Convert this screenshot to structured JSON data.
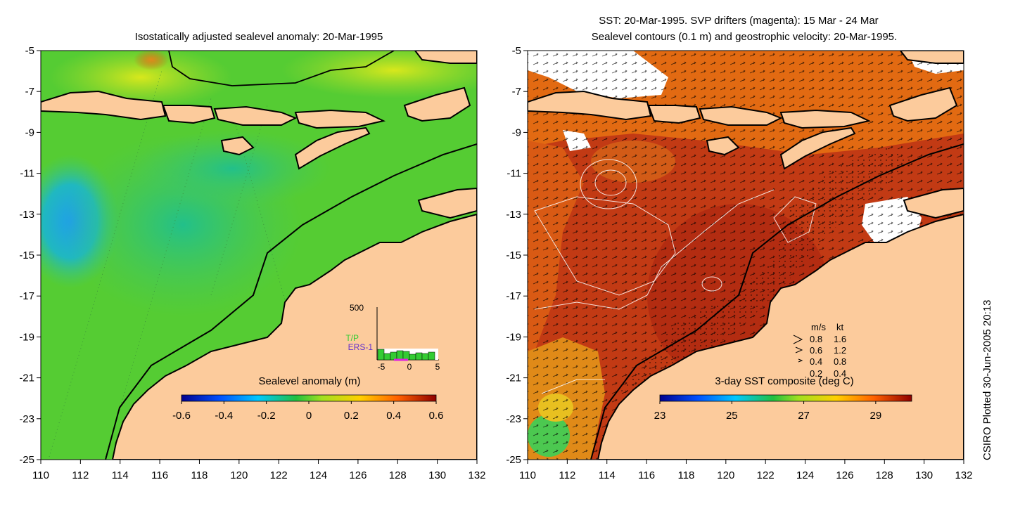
{
  "left_panel": {
    "title": "Isostatically adjusted sealevel anomaly: 20-Mar-1995",
    "y_ticks": [
      "-5",
      "-7",
      "-9",
      "-11",
      "-13",
      "-15",
      "-17",
      "-19",
      "-21",
      "-23",
      "-25"
    ],
    "x_ticks": [
      "110",
      "112",
      "114",
      "116",
      "118",
      "120",
      "122",
      "124",
      "126",
      "128",
      "130",
      "132"
    ],
    "colorbar": {
      "label": "Sealevel anomaly (m)",
      "ticks": [
        "-0.6",
        "-0.4",
        "-0.2",
        "0",
        "0.2",
        "0.4",
        "0.6"
      ],
      "range": [
        -0.6,
        0.6
      ]
    },
    "inset_histogram": {
      "y_max_label": "500",
      "x_ticks": [
        "-5",
        "0",
        "5"
      ],
      "legend": [
        {
          "label": "T/P",
          "color": "#33cc33"
        },
        {
          "label": "ERS-1",
          "color": "#6633cc"
        }
      ]
    }
  },
  "right_panel": {
    "title_line1": "SST: 20-Mar-1995. SVP drifters (magenta): 15 Mar - 24 Mar",
    "title_line2": "Sealevel contours (0.1 m) and geostrophic velocity: 20-Mar-1995.",
    "y_ticks": [
      "-5",
      "-7",
      "-9",
      "-11",
      "-13",
      "-15",
      "-17",
      "-19",
      "-21",
      "-23",
      "-25"
    ],
    "x_ticks": [
      "110",
      "112",
      "114",
      "116",
      "118",
      "120",
      "122",
      "124",
      "126",
      "128",
      "130",
      "132"
    ],
    "colorbar": {
      "label": "3-day SST composite (deg C)",
      "ticks": [
        "23",
        "25",
        "27",
        "29"
      ],
      "range": [
        23,
        30
      ]
    },
    "velocity_legend": {
      "headers": [
        "m/s",
        "kt"
      ],
      "rows": [
        {
          "ms": "0.8",
          "kt": "1.6"
        },
        {
          "ms": "0.6",
          "kt": "1.2"
        },
        {
          "ms": "0.4",
          "kt": "0.8"
        },
        {
          "ms": "0.2",
          "kt": "0.4"
        }
      ]
    }
  },
  "credit": "CSIRO Plotted 30-Jun-2005 20:13",
  "colors": {
    "land": "#fccb9c",
    "sla_background": "#55cc33",
    "sst_background": "#c23a14",
    "coastline": "#000000"
  }
}
